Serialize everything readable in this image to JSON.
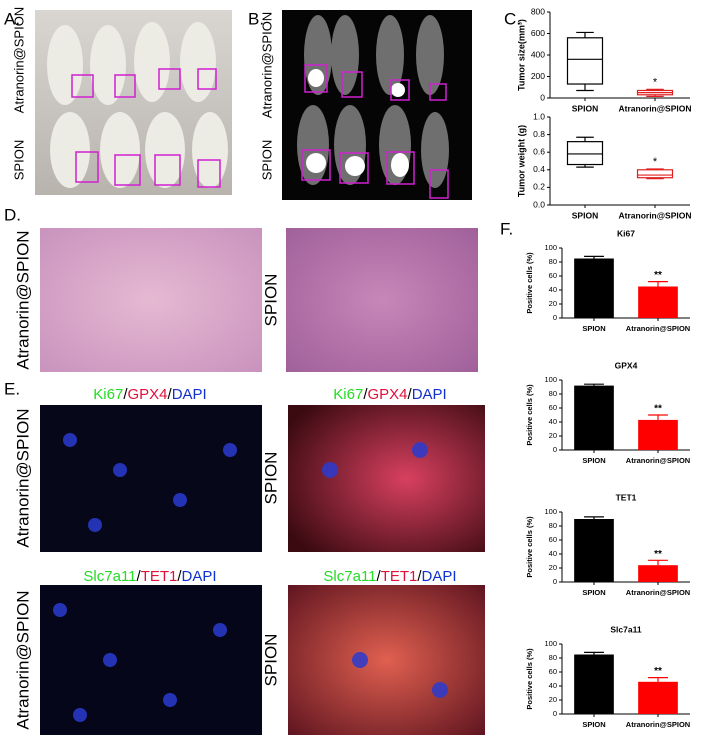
{
  "labels": {
    "panel_a": "A.",
    "panel_b": "B.",
    "panel_c": "C.",
    "panel_d": "D.",
    "panel_e": "E.",
    "panel_f": "F.",
    "a_top": "Atranorin@SPION",
    "a_bottom": "SPION",
    "b_top": "Atranorin@SPION",
    "b_bottom": "SPION",
    "d_left": "Atranorin@SPION",
    "d_right": "SPION",
    "e_top_left": "Atranorin@SPION",
    "e_top_right": "SPION",
    "e_bottom_left": "Atranorin@SPION",
    "e_bottom_right": "SPION",
    "stain_top_left": [
      "Ki67",
      "/",
      "GPX4",
      "/",
      "DAPI"
    ],
    "stain_top_right": [
      "Ki67",
      "/",
      "GPX4",
      "/",
      "DAPI"
    ],
    "stain_bottom_left": [
      "Slc7a11",
      "/",
      "TET1",
      "/",
      "DAPI"
    ],
    "stain_bottom_right": [
      "Slc7a11",
      "/",
      "TET1",
      "/",
      "DAPI"
    ]
  },
  "chart_data": [
    {
      "type": "box",
      "y_label": "Tumor size(mm³)",
      "categories": [
        "SPION",
        "Atranorin@SPION"
      ],
      "boxes": [
        {
          "min": 70,
          "q1": 130,
          "median": 360,
          "q3": 560,
          "max": 610
        },
        {
          "min": 15,
          "q1": 30,
          "median": 50,
          "q3": 70,
          "max": 80
        }
      ],
      "colors": [
        "#000000",
        "#e02020"
      ],
      "annotation": "*",
      "ylim": [
        0,
        800
      ],
      "yticks": [
        0,
        200,
        400,
        600,
        800
      ]
    },
    {
      "type": "box",
      "y_label": "Tumor weight (g)",
      "categories": [
        "SPION",
        "Atranorin@SPION"
      ],
      "boxes": [
        {
          "min": 0.43,
          "q1": 0.46,
          "median": 0.58,
          "q3": 0.72,
          "max": 0.77
        },
        {
          "min": 0.3,
          "q1": 0.31,
          "median": 0.34,
          "q3": 0.4,
          "max": 0.41
        }
      ],
      "colors": [
        "#000000",
        "#e02020"
      ],
      "annotation": "*",
      "ylim": [
        0,
        1.0
      ],
      "yticks": [
        {
          "value": 0,
          "label": "0.0"
        },
        0.2,
        0.4,
        0.6,
        0.8,
        {
          "value": 1.0,
          "label": "1.0"
        }
      ]
    },
    {
      "type": "bar",
      "title": "Ki67",
      "y_label": "Positive cells (%)",
      "categories": [
        "SPION",
        "Atranorin@SPION"
      ],
      "values": [
        85,
        45
      ],
      "errors": [
        3,
        7
      ],
      "colors": [
        "#000000",
        "#ff0000"
      ],
      "annotation": "**",
      "ylim": [
        0,
        100
      ],
      "yticks": [
        0,
        20,
        40,
        60,
        80,
        100
      ]
    },
    {
      "type": "bar",
      "title": "GPX4",
      "y_label": "Positive cells (%)",
      "categories": [
        "SPION",
        "Atranorin@SPION"
      ],
      "values": [
        92,
        43
      ],
      "errors": [
        2,
        7
      ],
      "colors": [
        "#000000",
        "#ff0000"
      ],
      "annotation": "**",
      "ylim": [
        0,
        100
      ],
      "yticks": [
        0,
        20,
        40,
        60,
        80,
        100
      ]
    },
    {
      "type": "bar",
      "title": "TET1",
      "y_label": "Positive cells (%)",
      "categories": [
        "SPION",
        "Atranorin@SPION"
      ],
      "values": [
        90,
        24
      ],
      "errors": [
        3,
        7
      ],
      "colors": [
        "#000000",
        "#ff0000"
      ],
      "annotation": "**",
      "ylim": [
        0,
        100
      ],
      "yticks": [
        0,
        20,
        40,
        60,
        80,
        100
      ]
    },
    {
      "type": "bar",
      "title": "Slc7a11",
      "y_label": "Positive cells (%)",
      "categories": [
        "SPION",
        "Atranorin@SPION"
      ],
      "values": [
        85,
        46
      ],
      "errors": [
        3,
        6
      ],
      "colors": [
        "#000000",
        "#ff0000"
      ],
      "annotation": "**",
      "ylim": [
        0,
        100
      ],
      "yticks": [
        0,
        20,
        40,
        60,
        80,
        100
      ]
    }
  ]
}
